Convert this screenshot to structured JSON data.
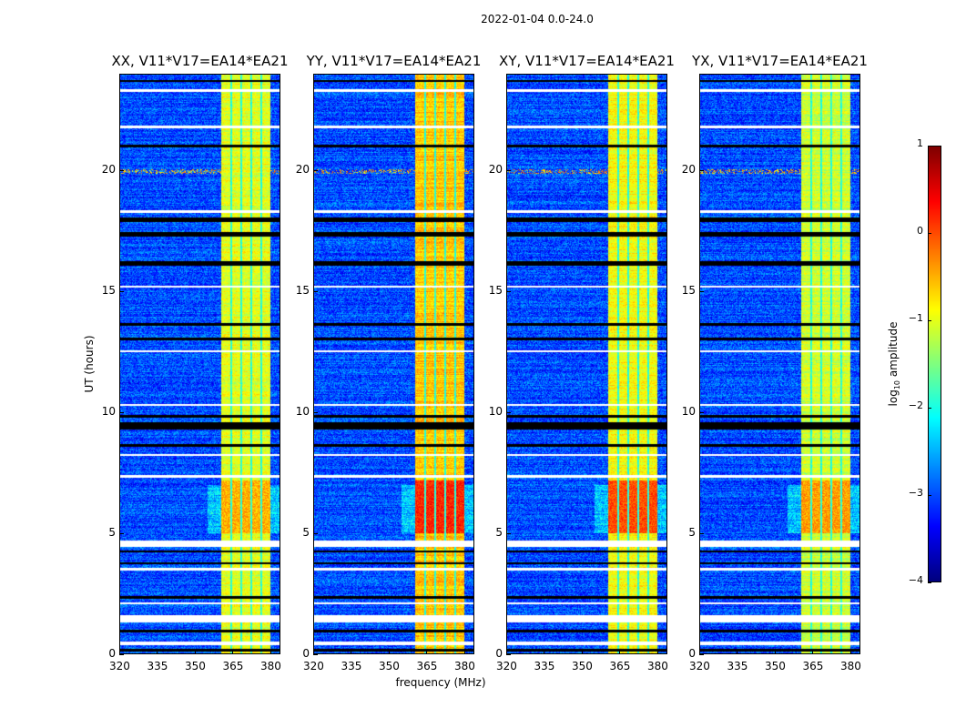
{
  "chart_data": {
    "type": "heatmap",
    "title": "2022-01-04 0.0-24.0",
    "xlabel": "frequency (MHz)",
    "ylabel": "UT (hours)",
    "xlim": [
      320,
      384
    ],
    "ylim": [
      0,
      24
    ],
    "xticks": [
      "320",
      "335",
      "350",
      "365",
      "380"
    ],
    "xtick_values": [
      320,
      335,
      350,
      365,
      380
    ],
    "yticks": [
      "0",
      "5",
      "10",
      "15",
      "20"
    ],
    "ytick_values": [
      0,
      5,
      10,
      15,
      20
    ],
    "panels": [
      {
        "title": "XX, V11*V17=EA14*EA21",
        "band_level": -1.0,
        "burst_level": -0.5,
        "rfi_20h": 0.0
      },
      {
        "title": "YY, V11*V17=EA14*EA21",
        "band_level": -0.6,
        "burst_level": 0.2,
        "rfi_20h": 0.0
      },
      {
        "title": "XY, V11*V17=EA14*EA21",
        "band_level": -0.9,
        "burst_level": 0.0,
        "rfi_20h": 0.0
      },
      {
        "title": "YX, V11*V17=EA14*EA21",
        "band_level": -1.1,
        "burst_level": -0.4,
        "rfi_20h": 0.0
      }
    ],
    "background_level": -3.0,
    "strong_band_mhz": [
      360.5,
      380
    ],
    "band_gaps_mhz": [
      364.5,
      368.5,
      372.5,
      376.5
    ],
    "flagged_hours_white": [
      [
        0.35,
        0.5
      ],
      [
        1.3,
        1.6
      ],
      [
        2.05,
        2.15
      ],
      [
        3.45,
        3.55
      ],
      [
        4.45,
        4.7
      ],
      [
        7.3,
        7.4
      ],
      [
        8.2,
        8.3
      ],
      [
        10.3,
        10.35
      ],
      [
        12.5,
        12.6
      ],
      [
        15.2,
        15.25
      ],
      [
        18.3,
        18.4
      ],
      [
        21.8,
        21.9
      ],
      [
        23.3,
        23.4
      ]
    ],
    "flagged_hours_black": [
      [
        0.1,
        0.2
      ],
      [
        0.9,
        1.0
      ],
      [
        2.3,
        2.4
      ],
      [
        3.7,
        3.8
      ],
      [
        4.2,
        4.3
      ],
      [
        8.6,
        8.7
      ],
      [
        9.3,
        9.6
      ],
      [
        9.8,
        9.9
      ],
      [
        13.0,
        13.1
      ],
      [
        13.6,
        13.7
      ],
      [
        16.1,
        16.3
      ],
      [
        17.3,
        17.5
      ],
      [
        17.9,
        18.1
      ],
      [
        21.0,
        21.1
      ],
      [
        23.7,
        23.8
      ]
    ],
    "colorbar": {
      "label": "log10 amplitude",
      "label_main": "log",
      "label_sub": "10",
      "label_rest": " amplitude",
      "range": [
        -4,
        1
      ],
      "ticks": [
        "1",
        "0",
        "−1",
        "−2",
        "−3",
        "−4"
      ],
      "tick_values": [
        1,
        0,
        -1,
        -2,
        -3,
        -4
      ],
      "colormap": "jet"
    }
  }
}
